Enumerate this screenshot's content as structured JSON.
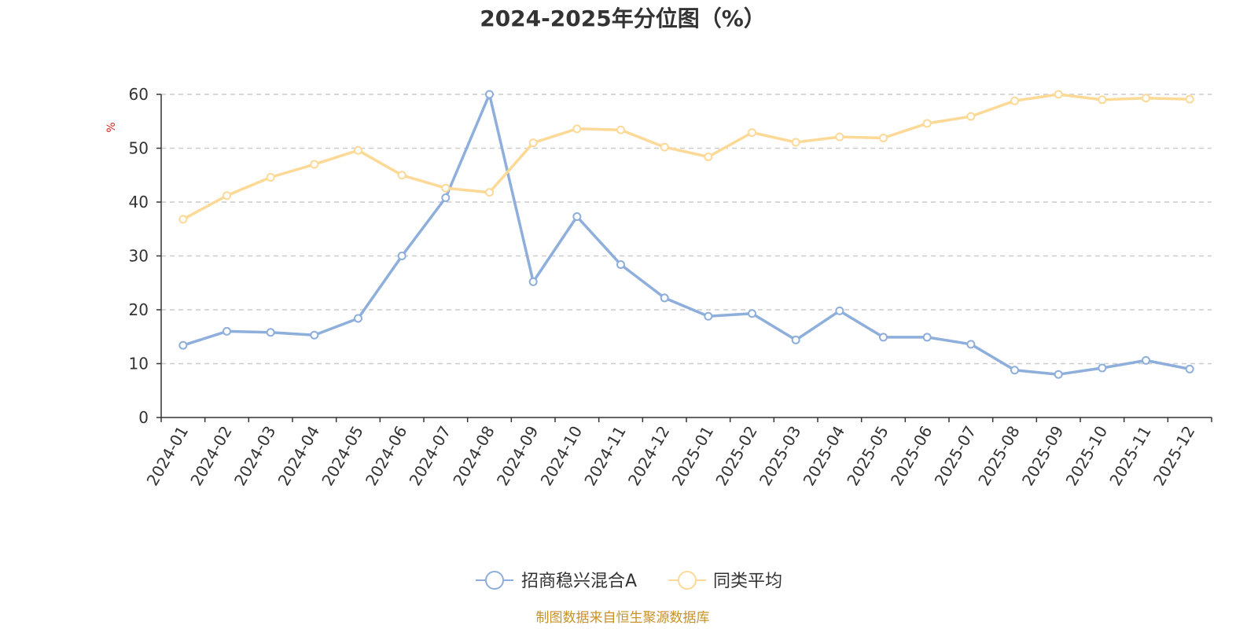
{
  "chart_data": {
    "type": "line",
    "title": "2024-2025年分位图（%）",
    "ylabel": "%",
    "xlabel": "",
    "ylim": [
      0,
      60
    ],
    "yticks": [
      0,
      10,
      20,
      30,
      40,
      50,
      60
    ],
    "grid": true,
    "legend_position": "bottom-center",
    "categories": [
      "2024-01",
      "2024-02",
      "2024-03",
      "2024-04",
      "2024-05",
      "2024-06",
      "2024-07",
      "2024-08",
      "2024-09",
      "2024-10",
      "2024-11",
      "2024-12",
      "2025-01",
      "2025-02",
      "2025-03",
      "2025-04",
      "2025-05",
      "2025-06",
      "2025-07",
      "2025-08",
      "2025-09",
      "2025-10",
      "2025-11",
      "2025-12"
    ],
    "series": [
      {
        "name": "招商稳兴混合A",
        "color": "#8eaedb",
        "values": [
          13.4,
          16.0,
          15.8,
          15.3,
          18.4,
          30.0,
          40.8,
          60.0,
          25.2,
          37.3,
          28.4,
          22.2,
          18.8,
          19.3,
          14.4,
          19.8,
          14.9,
          14.9,
          13.6,
          8.8,
          8.0,
          9.2,
          10.6,
          9.0
        ]
      },
      {
        "name": "同类平均",
        "color": "#fcd997",
        "values": [
          36.8,
          41.2,
          44.6,
          47.0,
          49.6,
          45.0,
          42.6,
          41.8,
          51.0,
          53.6,
          53.4,
          50.2,
          48.4,
          52.9,
          51.1,
          52.1,
          51.9,
          54.6,
          55.9,
          58.8,
          60.0,
          59.0,
          59.3,
          59.1
        ]
      }
    ]
  },
  "source": {
    "text": "制图数据来自恒生聚源数据库",
    "color": "#c8912a"
  },
  "ylabel_color": "#e02020",
  "axis_color": "#333333",
  "grid_color": "#cccccc"
}
